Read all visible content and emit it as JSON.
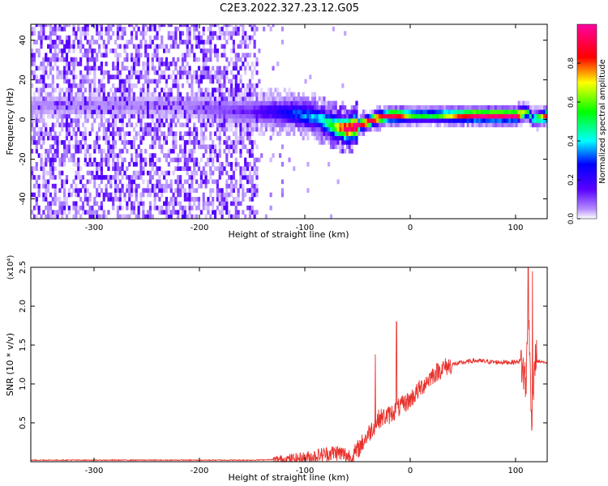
{
  "title": "C2E3.2022.327.23.12.G05",
  "colors": {
    "snr_line": "#e8312c",
    "spectrogram_low": "#6a00ff",
    "spectrogram_mid": "#00ffff",
    "spectrogram_high": "#ff0000"
  },
  "chart_data": [
    {
      "type": "heatmap",
      "title": "",
      "xlabel": "Height of straight line (km)",
      "ylabel": "Frequency (Hz)",
      "xlim": [
        -360,
        130
      ],
      "ylim": [
        -50,
        48
      ],
      "x_ticks": [
        -300,
        -200,
        -100,
        0,
        100
      ],
      "y_ticks": [
        -40,
        -20,
        0,
        20,
        40
      ],
      "colorbar": {
        "label": "Normalized spectral amplitude",
        "range": [
          0,
          1
        ],
        "ticks": [
          "0.0",
          "0.2",
          "0.4",
          "0.6",
          "0.8"
        ],
        "colormap": "rainbow (purple → blue → cyan → green → yellow → red → magenta)"
      },
      "signal_track": {
        "x": [
          -215,
          -190,
          -150,
          -130,
          -110,
          -90,
          -75,
          -60,
          -50,
          -40,
          -30,
          -20,
          -10,
          0,
          20,
          60,
          100,
          110,
          115,
          130
        ],
        "freq_hz": [
          6,
          4,
          3,
          3,
          2,
          0,
          -4,
          -6,
          -4,
          -2,
          0,
          1,
          1,
          1,
          1,
          1,
          1,
          3,
          -1,
          1
        ],
        "peak_amplitude": [
          0.05,
          0.08,
          0.12,
          0.2,
          0.3,
          0.35,
          0.5,
          0.9,
          0.9,
          0.9,
          0.85,
          0.9,
          0.85,
          0.55,
          0.5,
          0.95,
          0.95,
          0.5,
          0.4,
          0.9
        ]
      },
      "noise_region": {
        "x_start": -360,
        "x_end": -145,
        "level": "low"
      }
    },
    {
      "type": "line",
      "title": "",
      "xlabel": "Height of straight line (km)",
      "ylabel": "SNR (10 * v/v)",
      "y_multiplier": "(x10⁴)",
      "xlim": [
        -360,
        130
      ],
      "ylim": [
        0,
        2.5
      ],
      "x_ticks": [
        -300,
        -200,
        -100,
        0,
        100
      ],
      "y_ticks": [
        "0.5",
        "1.0",
        "1.5",
        "2.0",
        "2.5"
      ],
      "series": [
        {
          "x": [
            -360,
            -300,
            -200,
            -150,
            -120,
            -100,
            -80,
            -70,
            -60,
            -55,
            -50,
            -45,
            -40,
            -35,
            -30,
            -20,
            -10,
            0,
            10,
            20,
            30,
            40,
            60,
            80,
            100,
            105,
            110,
            112,
            115,
            118,
            130
          ],
          "values": [
            0.02,
            0.02,
            0.02,
            0.02,
            0.03,
            0.05,
            0.1,
            0.12,
            0.08,
            0.05,
            0.15,
            0.25,
            0.35,
            0.45,
            0.55,
            0.6,
            0.7,
            0.8,
            0.95,
            1.1,
            1.2,
            1.25,
            1.3,
            1.28,
            1.28,
            1.3,
            1.0,
            2.0,
            0.6,
            1.3,
            1.27
          ],
          "spikes": [
            {
              "x": -33,
              "value": 1.38
            },
            {
              "x": -13,
              "value": 1.8
            },
            {
              "x": 112,
              "value": 2.5
            },
            {
              "x": 116,
              "value": 2.45
            }
          ]
        }
      ]
    }
  ]
}
